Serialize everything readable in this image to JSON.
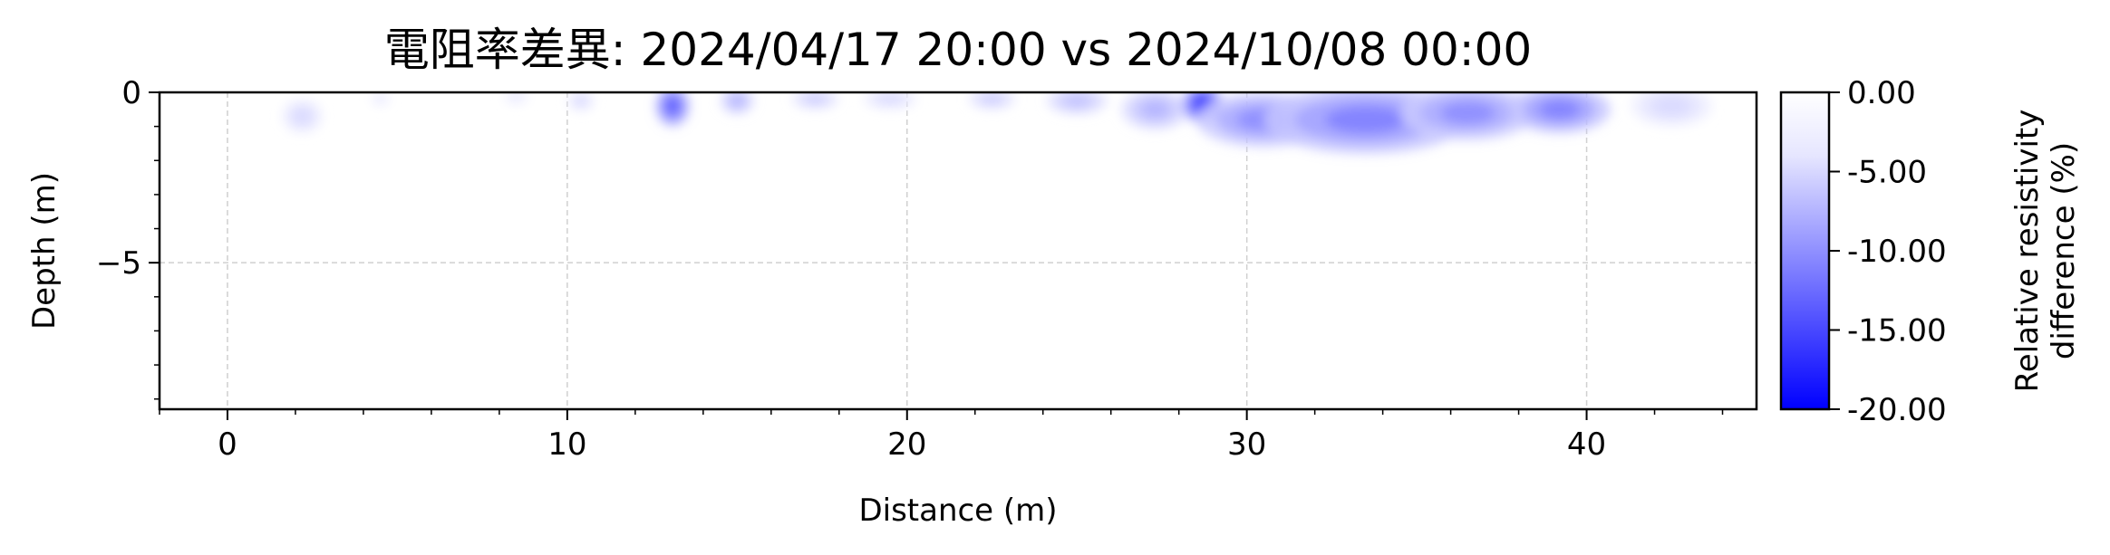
{
  "chart_data": {
    "type": "heatmap",
    "title": "電阻率差異: 2024/04/17 20:00 vs 2024/10/08 00:00",
    "xlabel": "Distance (m)",
    "ylabel": "Depth (m)",
    "xlim": [
      -2,
      45
    ],
    "ylim": [
      -9.3,
      0
    ],
    "x_ticks": [
      0,
      10,
      20,
      30,
      40
    ],
    "x_tick_labels": [
      "0",
      "10",
      "20",
      "30",
      "40"
    ],
    "y_ticks": [
      0,
      -5
    ],
    "y_tick_labels": [
      "0",
      "−5"
    ],
    "grid": true,
    "colorbar": {
      "label_lines": [
        "Relative resistivity",
        "difference (%)"
      ],
      "range": [
        -20,
        0
      ],
      "colors": [
        "#0000ff",
        "#ffffff"
      ],
      "ticks": [
        0,
        -5,
        -10,
        -15,
        -20
      ],
      "tick_labels": [
        "0.00",
        "-5.00",
        "-10.00",
        "-15.00",
        "-20.00"
      ],
      "placement": "right"
    },
    "anomalies": [
      {
        "x": 2.2,
        "depth": 0.7,
        "rx": 0.6,
        "rdepth": 0.5,
        "value": -3
      },
      {
        "x": 4.5,
        "depth": 0.2,
        "rx": 0.3,
        "rdepth": 0.2,
        "value": -2
      },
      {
        "x": 8.5,
        "depth": 0.15,
        "rx": 0.4,
        "rdepth": 0.2,
        "value": -2
      },
      {
        "x": 10.4,
        "depth": 0.25,
        "rx": 0.4,
        "rdepth": 0.3,
        "value": -3
      },
      {
        "x": 13.1,
        "depth": 0.4,
        "rx": 0.5,
        "rdepth": 0.6,
        "value": -13
      },
      {
        "x": 15.0,
        "depth": 0.25,
        "rx": 0.5,
        "rdepth": 0.4,
        "value": -6
      },
      {
        "x": 17.3,
        "depth": 0.2,
        "rx": 0.7,
        "rdepth": 0.3,
        "value": -4
      },
      {
        "x": 19.5,
        "depth": 0.2,
        "rx": 0.8,
        "rdepth": 0.3,
        "value": -3
      },
      {
        "x": 22.5,
        "depth": 0.2,
        "rx": 0.7,
        "rdepth": 0.3,
        "value": -4
      },
      {
        "x": 25.0,
        "depth": 0.25,
        "rx": 0.9,
        "rdepth": 0.4,
        "value": -5
      },
      {
        "x": 27.3,
        "depth": 0.5,
        "rx": 1.0,
        "rdepth": 0.6,
        "value": -6
      },
      {
        "x": 28.7,
        "depth": 0.35,
        "rx": 0.6,
        "rdepth": 0.55,
        "value": -17
      },
      {
        "x": 30.5,
        "depth": 0.8,
        "rx": 2.0,
        "rdepth": 0.8,
        "value": -9
      },
      {
        "x": 33.5,
        "depth": 0.8,
        "rx": 3.0,
        "rdepth": 1.0,
        "value": -10
      },
      {
        "x": 36.5,
        "depth": 0.6,
        "rx": 2.0,
        "rdepth": 0.8,
        "value": -9
      },
      {
        "x": 39.2,
        "depth": 0.5,
        "rx": 1.5,
        "rdepth": 0.7,
        "value": -10
      },
      {
        "x": 42.5,
        "depth": 0.4,
        "rx": 1.2,
        "rdepth": 0.6,
        "value": -3
      }
    ]
  }
}
